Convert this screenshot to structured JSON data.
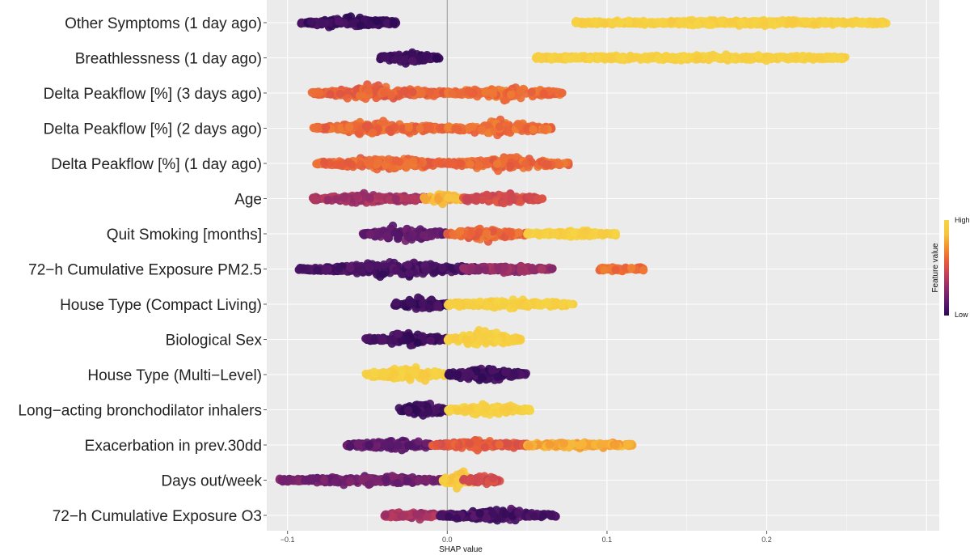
{
  "chart_data": {
    "type": "beeswarm",
    "xlabel": "SHAP value",
    "xlim": [
      -0.113,
      0.308
    ],
    "x_ticks": [
      -0.1,
      0.0,
      0.1,
      0.2
    ],
    "x_tick_labels": [
      "−0.1",
      "0.0",
      "0.1",
      "0.2"
    ],
    "grid": true,
    "legend": {
      "title": "Feature value",
      "high_label": "High",
      "low_label": "Low",
      "placement": "right",
      "colors": [
        "#2d0a55",
        "#5e1a6e",
        "#8f2b6a",
        "#c3405a",
        "#e85d3a",
        "#f3902f",
        "#f6c63f",
        "#f5d443"
      ]
    },
    "features": [
      {
        "name": "Other Symptoms (1 day ago)",
        "min": -0.092,
        "max": 0.275,
        "clusters": [
          [
            -0.092,
            -0.031,
            0.45,
            0.05
          ],
          [
            0.08,
            0.275,
            0.12,
            0.95
          ]
        ]
      },
      {
        "name": "Breathlessness (1 day ago)",
        "min": -0.042,
        "max": 0.25,
        "clusters": [
          [
            -0.042,
            -0.005,
            0.45,
            0.05
          ],
          [
            0.055,
            0.25,
            0.12,
            0.95
          ]
        ]
      },
      {
        "name": "Delta Peakflow [%] (3 days ago)",
        "min": -0.085,
        "max": 0.072,
        "clusters": [
          [
            -0.085,
            0.0,
            0.55,
            0.58
          ],
          [
            0.0,
            0.072,
            0.55,
            0.62
          ]
        ]
      },
      {
        "name": "Delta Peakflow [%] (2 days ago)",
        "min": -0.084,
        "max": 0.066,
        "clusters": [
          [
            -0.084,
            0.0,
            0.55,
            0.6
          ],
          [
            0.0,
            0.066,
            0.55,
            0.62
          ]
        ]
      },
      {
        "name": "Delta Peakflow [%] (1 day ago)",
        "min": -0.082,
        "max": 0.076,
        "clusters": [
          [
            -0.082,
            0.0,
            0.55,
            0.6
          ],
          [
            0.0,
            0.076,
            0.55,
            0.6
          ]
        ]
      },
      {
        "name": "Age",
        "min": -0.085,
        "max": 0.06,
        "clusters": [
          [
            -0.085,
            -0.01,
            0.4,
            0.35
          ],
          [
            -0.015,
            0.01,
            0.5,
            0.8
          ],
          [
            0.01,
            0.06,
            0.35,
            0.5
          ]
        ]
      },
      {
        "name": "Quit Smoking [months]",
        "min": -0.053,
        "max": 0.106,
        "clusters": [
          [
            -0.053,
            0.0,
            0.7,
            0.15
          ],
          [
            0.0,
            0.05,
            0.5,
            0.6
          ],
          [
            0.05,
            0.106,
            0.2,
            0.95
          ]
        ]
      },
      {
        "name": "72−h Cumulative Exposure PM2.5",
        "min": -0.093,
        "max": 0.123,
        "clusters": [
          [
            -0.093,
            0.033,
            0.55,
            0.08
          ],
          [
            0.01,
            0.066,
            0.2,
            0.3
          ],
          [
            0.095,
            0.123,
            0.1,
            0.62
          ]
        ]
      },
      {
        "name": "House Type (Compact Living)",
        "min": -0.033,
        "max": 0.079,
        "clusters": [
          [
            -0.033,
            0.0,
            0.6,
            0.05
          ],
          [
            0.0,
            0.079,
            0.3,
            0.95
          ]
        ]
      },
      {
        "name": "Biological Sex",
        "min": -0.052,
        "max": 0.046,
        "clusters": [
          [
            -0.052,
            0.0,
            0.5,
            0.05
          ],
          [
            0.0,
            0.046,
            0.85,
            0.95
          ]
        ]
      },
      {
        "name": "House Type (Multi−Level)",
        "min": -0.051,
        "max": 0.05,
        "clusters": [
          [
            -0.051,
            0.0,
            0.7,
            0.95
          ],
          [
            0.0,
            0.05,
            0.55,
            0.05
          ]
        ]
      },
      {
        "name": "Long−acting bronchodilator inhalers",
        "min": -0.031,
        "max": 0.052,
        "clusters": [
          [
            -0.031,
            0.0,
            0.7,
            0.05
          ],
          [
            0.0,
            0.052,
            0.55,
            0.95
          ]
        ]
      },
      {
        "name": "Exacerbation in prev.30dd",
        "min": -0.063,
        "max": 0.116,
        "clusters": [
          [
            -0.063,
            0.0,
            0.35,
            0.15
          ],
          [
            -0.01,
            0.05,
            0.35,
            0.55
          ],
          [
            0.05,
            0.116,
            0.15,
            0.78
          ]
        ]
      },
      {
        "name": "Days out/week",
        "min": -0.105,
        "max": 0.033,
        "clusters": [
          [
            -0.105,
            0.0,
            0.3,
            0.2
          ],
          [
            -0.003,
            0.017,
            0.85,
            0.9
          ],
          [
            0.01,
            0.033,
            0.3,
            0.5
          ]
        ]
      },
      {
        "name": "72−h Cumulative Exposure O3",
        "min": -0.04,
        "max": 0.068,
        "clusters": [
          [
            -0.04,
            0.0,
            0.3,
            0.35
          ],
          [
            -0.005,
            0.068,
            0.5,
            0.08
          ]
        ]
      }
    ]
  }
}
